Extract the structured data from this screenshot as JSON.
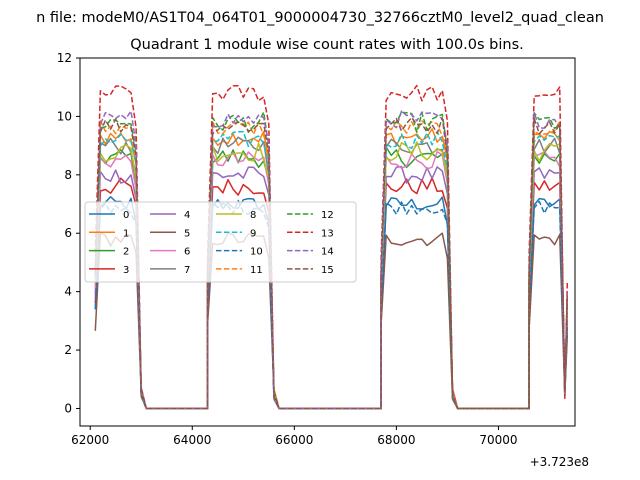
{
  "header_text": "n file: modeM0/AS1T04_064T01_9000004730_32766cztM0_level2_quad_clean",
  "chart_data": {
    "type": "line",
    "title": "Quadrant 1 module wise count rates with 100.0s bins.",
    "xlabel": "",
    "ylabel": "",
    "x_offset_label": "+3.723e8",
    "xlim": [
      61800,
      71500
    ],
    "ylim": [
      -0.6,
      12
    ],
    "x_ticks": [
      62000,
      64000,
      66000,
      68000,
      70000
    ],
    "x_tick_labels": [
      "62000",
      "64000",
      "66000",
      "68000",
      "70000"
    ],
    "y_ticks": [
      0,
      2,
      4,
      6,
      8,
      10,
      12
    ],
    "y_tick_labels": [
      "0",
      "2",
      "4",
      "6",
      "8",
      "10",
      "12"
    ],
    "grid": false,
    "legend_placement": "center-left",
    "legend_columns": 4,
    "colors": [
      "#1f77b4",
      "#ff7f0e",
      "#2ca02c",
      "#d62728",
      "#9467bd",
      "#8c564b",
      "#e377c2",
      "#7f7f7f",
      "#bcbd22",
      "#17becf",
      "#1f77b4",
      "#ff7f0e",
      "#2ca02c",
      "#d62728",
      "#9467bd",
      "#8c564b"
    ],
    "segments": [
      {
        "ramp_up": [
          62100,
          62200
        ],
        "plateau_end": 62800,
        "ramp_down": [
          62900,
          63000
        ],
        "zero_until": 64300
      },
      {
        "ramp_up": [
          64300,
          64400
        ],
        "plateau_end": 65400,
        "ramp_down": [
          65500,
          65600
        ],
        "zero_until": 67700
      },
      {
        "ramp_up": [
          67700,
          67800
        ],
        "plateau_end": 68900,
        "ramp_down": [
          69000,
          69100
        ],
        "zero_until": 70600
      },
      {
        "ramp_up": [
          70600,
          70700
        ],
        "plateau_end": 71200,
        "ramp_down": [
          71300,
          71300
        ],
        "zero_until": 71300
      }
    ],
    "series": [
      {
        "name": "0",
        "dashed": false,
        "level": 7.0,
        "noise": 0.25
      },
      {
        "name": "1",
        "dashed": false,
        "level": 9.3,
        "noise": 0.3
      },
      {
        "name": "2",
        "dashed": false,
        "level": 8.6,
        "noise": 0.35
      },
      {
        "name": "3",
        "dashed": false,
        "level": 7.6,
        "noise": 0.3
      },
      {
        "name": "4",
        "dashed": false,
        "level": 8.0,
        "noise": 0.3
      },
      {
        "name": "5",
        "dashed": false,
        "level": 5.8,
        "noise": 0.25
      },
      {
        "name": "6",
        "dashed": false,
        "level": 8.5,
        "noise": 0.3
      },
      {
        "name": "7",
        "dashed": false,
        "level": 9.0,
        "noise": 0.3
      },
      {
        "name": "8",
        "dashed": false,
        "level": 8.8,
        "noise": 0.35
      },
      {
        "name": "9",
        "dashed": true,
        "level": 9.2,
        "noise": 0.3
      },
      {
        "name": "10",
        "dashed": true,
        "level": 6.9,
        "noise": 0.25
      },
      {
        "name": "11",
        "dashed": true,
        "level": 9.6,
        "noise": 0.3
      },
      {
        "name": "12",
        "dashed": true,
        "level": 9.8,
        "noise": 0.35
      },
      {
        "name": "13",
        "dashed": true,
        "level": 10.8,
        "noise": 0.3
      },
      {
        "name": "14",
        "dashed": true,
        "level": 9.9,
        "noise": 0.3
      },
      {
        "name": "15",
        "dashed": true,
        "level": 9.7,
        "noise": 0.3
      }
    ]
  }
}
